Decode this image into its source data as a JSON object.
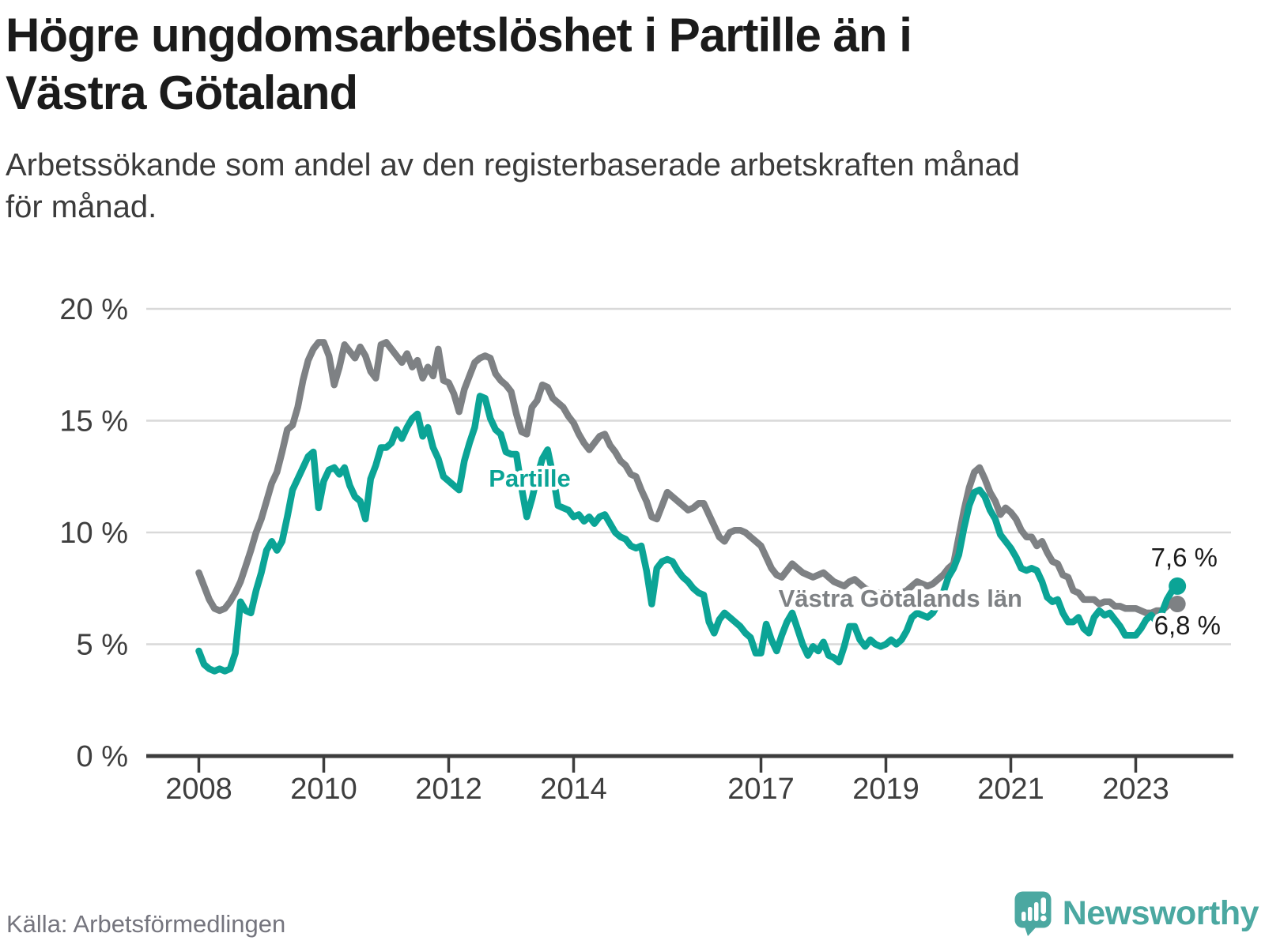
{
  "title_lines": [
    "Högre ungdomsarbetslöshet i Partille än i",
    "Västra Götaland"
  ],
  "subtitle_lines": [
    "Arbetssökande som andel av den registerbaserade arbetskraften månad",
    "för månad."
  ],
  "source": "Källa: Arbetsförmedlingen",
  "branding": {
    "name": "Newsworthy",
    "logo_color": "#4BA8A1"
  },
  "chart_data": {
    "type": "line",
    "title": "Högre ungdomsarbetslöshet i Partille än i Västra Götaland",
    "subtitle": "Arbetssökande som andel av den registerbaserade arbetskraften månad för månad.",
    "xlabel": "",
    "ylabel": "",
    "x_unit": "month",
    "x_start": "2008-01",
    "x_end": "2023-09",
    "ylim": [
      0,
      20
    ],
    "grid": "horizontal",
    "legend_position": "inline-labels",
    "y_ticks": [
      {
        "value": 20,
        "label": "20 %"
      },
      {
        "value": 15,
        "label": "15 %"
      },
      {
        "value": 10,
        "label": "10 %"
      },
      {
        "value": 5,
        "label": "5 %"
      },
      {
        "value": 0,
        "label": "0 %"
      }
    ],
    "x_ticks": [
      {
        "year": 2008,
        "label": "2008"
      },
      {
        "year": 2010,
        "label": "2010"
      },
      {
        "year": 2012,
        "label": "2012"
      },
      {
        "year": 2014,
        "label": "2014"
      },
      {
        "year": 2017,
        "label": "2017"
      },
      {
        "year": 2019,
        "label": "2019"
      },
      {
        "year": 2021,
        "label": "2021"
      },
      {
        "year": 2023,
        "label": "2023"
      }
    ],
    "series": [
      {
        "name": "Partille",
        "color": "#0BA496",
        "end_label": "7,6 %",
        "end_value": 7.6,
        "values": [
          4.7,
          4.1,
          3.9,
          3.8,
          3.9,
          3.8,
          3.9,
          4.6,
          6.9,
          6.5,
          6.4,
          7.4,
          8.2,
          9.2,
          9.6,
          9.2,
          9.6,
          10.7,
          11.9,
          12.4,
          12.9,
          13.4,
          13.6,
          11.1,
          12.3,
          12.8,
          12.9,
          12.6,
          12.9,
          12.1,
          11.6,
          11.4,
          10.6,
          12.4,
          13.0,
          13.8,
          13.8,
          14.0,
          14.6,
          14.2,
          14.7,
          15.1,
          15.3,
          14.3,
          14.7,
          13.8,
          13.3,
          12.5,
          12.3,
          12.1,
          11.9,
          13.2,
          14.0,
          14.7,
          16.1,
          16.0,
          15.1,
          14.6,
          14.4,
          13.6,
          13.5,
          13.5,
          12.0,
          10.7,
          11.5,
          12.5,
          13.3,
          13.7,
          12.6,
          11.2,
          11.1,
          11.0,
          10.7,
          10.8,
          10.5,
          10.7,
          10.4,
          10.7,
          10.8,
          10.4,
          10.0,
          9.8,
          9.7,
          9.4,
          9.3,
          9.4,
          8.3,
          6.8,
          8.4,
          8.7,
          8.8,
          8.7,
          8.3,
          8.0,
          7.8,
          7.5,
          7.3,
          7.2,
          6.0,
          5.5,
          6.1,
          6.4,
          6.2,
          6.0,
          5.8,
          5.5,
          5.3,
          4.6,
          4.6,
          5.9,
          5.2,
          4.7,
          5.4,
          6.0,
          6.4,
          5.7,
          5.0,
          4.5,
          4.9,
          4.7,
          5.1,
          4.5,
          4.4,
          4.2,
          4.9,
          5.8,
          5.8,
          5.2,
          4.9,
          5.2,
          5.0,
          4.9,
          5.0,
          5.2,
          5.0,
          5.2,
          5.6,
          6.2,
          6.4,
          6.3,
          6.2,
          6.4,
          6.8,
          7.3,
          8.0,
          8.4,
          9.0,
          10.2,
          11.2,
          11.8,
          11.9,
          11.6,
          11.0,
          10.6,
          9.9,
          9.6,
          9.3,
          8.9,
          8.4,
          8.3,
          8.4,
          8.3,
          7.8,
          7.1,
          6.9,
          7.0,
          6.4,
          6.0,
          6.0,
          6.2,
          5.7,
          5.5,
          6.2,
          6.5,
          6.3,
          6.4,
          6.1,
          5.8,
          5.4,
          5.4,
          5.4,
          5.7,
          6.1,
          6.3,
          6.0,
          6.4,
          7.0,
          7.4,
          7.6
        ]
      },
      {
        "name": "Västra Götalands län",
        "color": "#7E8184",
        "end_label": "6,8 %",
        "end_value": 6.8,
        "values": [
          8.2,
          7.6,
          7.0,
          6.6,
          6.5,
          6.6,
          6.9,
          7.3,
          7.8,
          8.5,
          9.2,
          10.0,
          10.6,
          11.4,
          12.2,
          12.7,
          13.6,
          14.6,
          14.8,
          15.6,
          16.8,
          17.7,
          18.2,
          18.5,
          18.5,
          17.9,
          16.6,
          17.4,
          18.4,
          18.1,
          17.8,
          18.3,
          17.9,
          17.2,
          16.9,
          18.4,
          18.5,
          18.2,
          17.9,
          17.6,
          18.0,
          17.4,
          17.7,
          16.9,
          17.4,
          17.0,
          18.2,
          16.8,
          16.7,
          16.2,
          15.4,
          16.4,
          17.0,
          17.6,
          17.8,
          17.9,
          17.8,
          17.1,
          16.8,
          16.6,
          16.3,
          15.3,
          14.5,
          14.4,
          15.6,
          15.9,
          16.6,
          16.5,
          16.0,
          15.8,
          15.6,
          15.2,
          14.9,
          14.4,
          14.0,
          13.7,
          14.0,
          14.3,
          14.4,
          13.9,
          13.6,
          13.2,
          13.0,
          12.6,
          12.5,
          11.9,
          11.4,
          10.7,
          10.6,
          11.2,
          11.8,
          11.6,
          11.4,
          11.2,
          11.0,
          11.1,
          11.3,
          11.3,
          10.8,
          10.3,
          9.8,
          9.6,
          10.0,
          10.1,
          10.1,
          10.0,
          9.8,
          9.6,
          9.4,
          8.9,
          8.4,
          8.1,
          8.0,
          8.3,
          8.6,
          8.4,
          8.2,
          8.1,
          8.0,
          8.1,
          8.2,
          8.0,
          7.8,
          7.7,
          7.6,
          7.8,
          7.9,
          7.7,
          7.5,
          7.4,
          7.3,
          7.3,
          7.4,
          7.3,
          7.2,
          7.3,
          7.4,
          7.6,
          7.8,
          7.7,
          7.6,
          7.7,
          7.9,
          8.1,
          8.4,
          8.6,
          9.8,
          11.0,
          12.0,
          12.7,
          12.9,
          12.4,
          11.8,
          11.4,
          10.8,
          11.1,
          10.9,
          10.6,
          10.1,
          9.8,
          9.8,
          9.4,
          9.6,
          9.1,
          8.7,
          8.6,
          8.1,
          8.0,
          7.4,
          7.3,
          7.0,
          7.0,
          7.0,
          6.8,
          6.9,
          6.9,
          6.7,
          6.7,
          6.6,
          6.6,
          6.6,
          6.5,
          6.4,
          6.4,
          6.5,
          6.5,
          6.7,
          6.9,
          6.8
        ]
      }
    ]
  }
}
